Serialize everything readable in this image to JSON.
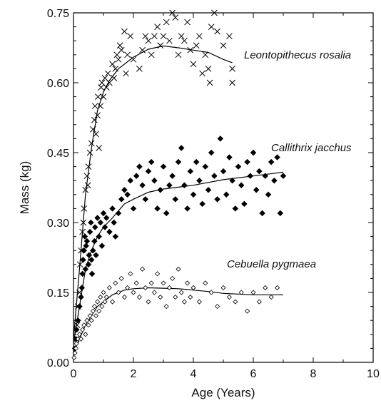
{
  "chart_data": {
    "type": "scatter",
    "title": "",
    "xlabel": "Age (Years)",
    "ylabel": "Mass (kg)",
    "xlim": [
      0,
      10
    ],
    "ylim": [
      0,
      0.75
    ],
    "x_ticks": [
      "0",
      "2",
      "4",
      "6",
      "8",
      "10"
    ],
    "y_ticks": [
      "0.00",
      "0.15",
      "0.30",
      "0.45",
      "0.60",
      "0.75"
    ],
    "grid": false,
    "series": [
      {
        "name": "Leontopithecus rosalia",
        "marker": "x",
        "fit_curve": [
          [
            0.0,
            0.05
          ],
          [
            0.2,
            0.2
          ],
          [
            0.4,
            0.36
          ],
          [
            0.6,
            0.46
          ],
          [
            0.8,
            0.54
          ],
          [
            1.0,
            0.58
          ],
          [
            1.2,
            0.605
          ],
          [
            1.5,
            0.63
          ],
          [
            2.0,
            0.655
          ],
          [
            2.5,
            0.672
          ],
          [
            3.0,
            0.679
          ],
          [
            3.5,
            0.675
          ],
          [
            4.0,
            0.67
          ],
          [
            4.5,
            0.665
          ],
          [
            5.0,
            0.65
          ],
          [
            5.3,
            0.643
          ]
        ],
        "points": [
          [
            0.1,
            0.05
          ],
          [
            0.12,
            0.08
          ],
          [
            0.15,
            0.12
          ],
          [
            0.2,
            0.15
          ],
          [
            0.22,
            0.21
          ],
          [
            0.25,
            0.24
          ],
          [
            0.3,
            0.28
          ],
          [
            0.33,
            0.3
          ],
          [
            0.35,
            0.33
          ],
          [
            0.4,
            0.37
          ],
          [
            0.45,
            0.4
          ],
          [
            0.48,
            0.38
          ],
          [
            0.5,
            0.42
          ],
          [
            0.55,
            0.45
          ],
          [
            0.6,
            0.47
          ],
          [
            0.65,
            0.5
          ],
          [
            0.7,
            0.52
          ],
          [
            0.72,
            0.55
          ],
          [
            0.75,
            0.49
          ],
          [
            0.8,
            0.53
          ],
          [
            0.82,
            0.57
          ],
          [
            0.85,
            0.46
          ],
          [
            0.9,
            0.55
          ],
          [
            0.92,
            0.59
          ],
          [
            0.95,
            0.6
          ],
          [
            1.0,
            0.57
          ],
          [
            1.05,
            0.61
          ],
          [
            1.1,
            0.59
          ],
          [
            1.15,
            0.62
          ],
          [
            1.2,
            0.6
          ],
          [
            1.3,
            0.64
          ],
          [
            1.35,
            0.61
          ],
          [
            1.4,
            0.63
          ],
          [
            1.45,
            0.66
          ],
          [
            1.5,
            0.65
          ],
          [
            1.55,
            0.68
          ],
          [
            1.6,
            0.67
          ],
          [
            1.7,
            0.71
          ],
          [
            1.75,
            0.62
          ],
          [
            1.8,
            0.66
          ],
          [
            1.9,
            0.7
          ],
          [
            2.0,
            0.65
          ],
          [
            2.2,
            0.63
          ],
          [
            2.3,
            0.67
          ],
          [
            2.4,
            0.7
          ],
          [
            2.5,
            0.69
          ],
          [
            2.6,
            0.66
          ],
          [
            2.7,
            0.7
          ],
          [
            2.8,
            0.72
          ],
          [
            2.9,
            0.68
          ],
          [
            3.0,
            0.7
          ],
          [
            3.1,
            0.73
          ],
          [
            3.2,
            0.69
          ],
          [
            3.3,
            0.75
          ],
          [
            3.4,
            0.74
          ],
          [
            3.5,
            0.66
          ],
          [
            3.6,
            0.7
          ],
          [
            3.7,
            0.69
          ],
          [
            3.8,
            0.73
          ],
          [
            3.9,
            0.67
          ],
          [
            4.0,
            0.64
          ],
          [
            4.1,
            0.68
          ],
          [
            4.2,
            0.7
          ],
          [
            4.3,
            0.62
          ],
          [
            4.4,
            0.66
          ],
          [
            4.5,
            0.63
          ],
          [
            4.55,
            0.6
          ],
          [
            4.6,
            0.72
          ],
          [
            4.7,
            0.75
          ],
          [
            4.8,
            0.71
          ],
          [
            5.0,
            0.68
          ],
          [
            5.2,
            0.7
          ],
          [
            5.3,
            0.6
          ],
          [
            5.3,
            0.63
          ]
        ]
      },
      {
        "name": "Callithrix jacchus",
        "marker": "filled-diamond",
        "fit_curve": [
          [
            0.0,
            0.04
          ],
          [
            0.2,
            0.12
          ],
          [
            0.4,
            0.2
          ],
          [
            0.6,
            0.24
          ],
          [
            0.8,
            0.27
          ],
          [
            1.0,
            0.29
          ],
          [
            1.3,
            0.31
          ],
          [
            1.7,
            0.34
          ],
          [
            2.0,
            0.35
          ],
          [
            2.5,
            0.365
          ],
          [
            3.0,
            0.372
          ],
          [
            4.0,
            0.38
          ],
          [
            5.0,
            0.392
          ],
          [
            6.0,
            0.4
          ],
          [
            7.0,
            0.408
          ]
        ],
        "points": [
          [
            0.05,
            0.03
          ],
          [
            0.08,
            0.05
          ],
          [
            0.1,
            0.07
          ],
          [
            0.15,
            0.09
          ],
          [
            0.2,
            0.12
          ],
          [
            0.25,
            0.14
          ],
          [
            0.28,
            0.16
          ],
          [
            0.3,
            0.19
          ],
          [
            0.32,
            0.22
          ],
          [
            0.35,
            0.24
          ],
          [
            0.38,
            0.27
          ],
          [
            0.4,
            0.2
          ],
          [
            0.42,
            0.25
          ],
          [
            0.45,
            0.26
          ],
          [
            0.5,
            0.21
          ],
          [
            0.52,
            0.23
          ],
          [
            0.55,
            0.28
          ],
          [
            0.58,
            0.3
          ],
          [
            0.6,
            0.22
          ],
          [
            0.62,
            0.19
          ],
          [
            0.65,
            0.24
          ],
          [
            0.7,
            0.26
          ],
          [
            0.72,
            0.29
          ],
          [
            0.75,
            0.23
          ],
          [
            0.8,
            0.31
          ],
          [
            0.85,
            0.27
          ],
          [
            0.9,
            0.3
          ],
          [
            0.95,
            0.25
          ],
          [
            1.0,
            0.32
          ],
          [
            1.05,
            0.29
          ],
          [
            1.1,
            0.31
          ],
          [
            1.2,
            0.28
          ],
          [
            1.3,
            0.33
          ],
          [
            1.35,
            0.3
          ],
          [
            1.4,
            0.27
          ],
          [
            1.5,
            0.32
          ],
          [
            1.6,
            0.35
          ],
          [
            1.7,
            0.37
          ],
          [
            1.8,
            0.36
          ],
          [
            1.9,
            0.39
          ],
          [
            2.0,
            0.33
          ],
          [
            2.1,
            0.4
          ],
          [
            2.2,
            0.42
          ],
          [
            2.3,
            0.38
          ],
          [
            2.4,
            0.35
          ],
          [
            2.5,
            0.41
          ],
          [
            2.6,
            0.43
          ],
          [
            2.7,
            0.39
          ],
          [
            2.8,
            0.33
          ],
          [
            2.9,
            0.37
          ],
          [
            3.0,
            0.42
          ],
          [
            3.1,
            0.32
          ],
          [
            3.2,
            0.38
          ],
          [
            3.3,
            0.4
          ],
          [
            3.4,
            0.35
          ],
          [
            3.5,
            0.43
          ],
          [
            3.6,
            0.46
          ],
          [
            3.7,
            0.38
          ],
          [
            3.8,
            0.33
          ],
          [
            3.9,
            0.41
          ],
          [
            4.0,
            0.36
          ],
          [
            4.1,
            0.43
          ],
          [
            4.2,
            0.39
          ],
          [
            4.3,
            0.34
          ],
          [
            4.4,
            0.42
          ],
          [
            4.5,
            0.37
          ],
          [
            4.6,
            0.45
          ],
          [
            4.7,
            0.4
          ],
          [
            4.8,
            0.35
          ],
          [
            4.9,
            0.48
          ],
          [
            5.0,
            0.41
          ],
          [
            5.1,
            0.36
          ],
          [
            5.2,
            0.44
          ],
          [
            5.3,
            0.39
          ],
          [
            5.4,
            0.33
          ],
          [
            5.5,
            0.42
          ],
          [
            5.6,
            0.38
          ],
          [
            5.7,
            0.34
          ],
          [
            5.8,
            0.43
          ],
          [
            5.9,
            0.4
          ],
          [
            6.0,
            0.45
          ],
          [
            6.1,
            0.37
          ],
          [
            6.2,
            0.41
          ],
          [
            6.3,
            0.32
          ],
          [
            6.4,
            0.4
          ],
          [
            6.5,
            0.36
          ],
          [
            6.6,
            0.43
          ],
          [
            6.7,
            0.39
          ],
          [
            6.8,
            0.44
          ],
          [
            6.9,
            0.32
          ],
          [
            7.0,
            0.4
          ]
        ]
      },
      {
        "name": "Cebuella pygmaea",
        "marker": "open-diamond",
        "fit_curve": [
          [
            0.0,
            0.02
          ],
          [
            0.2,
            0.05
          ],
          [
            0.4,
            0.08
          ],
          [
            0.6,
            0.1
          ],
          [
            0.8,
            0.12
          ],
          [
            1.0,
            0.13
          ],
          [
            1.3,
            0.145
          ],
          [
            1.7,
            0.155
          ],
          [
            2.0,
            0.158
          ],
          [
            2.5,
            0.16
          ],
          [
            3.0,
            0.159
          ],
          [
            3.5,
            0.158
          ],
          [
            4.0,
            0.155
          ],
          [
            4.5,
            0.152
          ],
          [
            5.0,
            0.148
          ],
          [
            6.0,
            0.145
          ],
          [
            7.0,
            0.145
          ]
        ],
        "points": [
          [
            0.02,
            0.01
          ],
          [
            0.05,
            0.02
          ],
          [
            0.08,
            0.03
          ],
          [
            0.1,
            0.04
          ],
          [
            0.15,
            0.05
          ],
          [
            0.2,
            0.06
          ],
          [
            0.25,
            0.05
          ],
          [
            0.3,
            0.07
          ],
          [
            0.35,
            0.08
          ],
          [
            0.4,
            0.06
          ],
          [
            0.45,
            0.09
          ],
          [
            0.5,
            0.08
          ],
          [
            0.55,
            0.1
          ],
          [
            0.6,
            0.09
          ],
          [
            0.65,
            0.11
          ],
          [
            0.7,
            0.12
          ],
          [
            0.75,
            0.1
          ],
          [
            0.8,
            0.13
          ],
          [
            0.85,
            0.11
          ],
          [
            0.9,
            0.14
          ],
          [
            0.95,
            0.12
          ],
          [
            1.0,
            0.15
          ],
          [
            1.05,
            0.13
          ],
          [
            1.1,
            0.14
          ],
          [
            1.2,
            0.16
          ],
          [
            1.3,
            0.13
          ],
          [
            1.4,
            0.17
          ],
          [
            1.5,
            0.15
          ],
          [
            1.6,
            0.18
          ],
          [
            1.7,
            0.14
          ],
          [
            1.8,
            0.16
          ],
          [
            1.9,
            0.19
          ],
          [
            2.0,
            0.15
          ],
          [
            2.1,
            0.17
          ],
          [
            2.2,
            0.14
          ],
          [
            2.3,
            0.2
          ],
          [
            2.4,
            0.16
          ],
          [
            2.5,
            0.13
          ],
          [
            2.6,
            0.17
          ],
          [
            2.7,
            0.15
          ],
          [
            2.8,
            0.19
          ],
          [
            2.9,
            0.14
          ],
          [
            3.0,
            0.17
          ],
          [
            3.1,
            0.12
          ],
          [
            3.2,
            0.16
          ],
          [
            3.3,
            0.18
          ],
          [
            3.4,
            0.14
          ],
          [
            3.5,
            0.2
          ],
          [
            3.6,
            0.15
          ],
          [
            3.7,
            0.13
          ],
          [
            3.8,
            0.17
          ],
          [
            3.9,
            0.14
          ],
          [
            4.0,
            0.16
          ],
          [
            4.2,
            0.13
          ],
          [
            4.4,
            0.17
          ],
          [
            4.6,
            0.15
          ],
          [
            4.8,
            0.12
          ],
          [
            5.0,
            0.16
          ],
          [
            5.2,
            0.14
          ],
          [
            5.4,
            0.13
          ],
          [
            5.6,
            0.15
          ],
          [
            5.8,
            0.11
          ],
          [
            6.0,
            0.15
          ],
          [
            6.2,
            0.13
          ],
          [
            6.4,
            0.16
          ],
          [
            6.6,
            0.14
          ],
          [
            6.8,
            0.16
          ]
        ]
      }
    ]
  }
}
